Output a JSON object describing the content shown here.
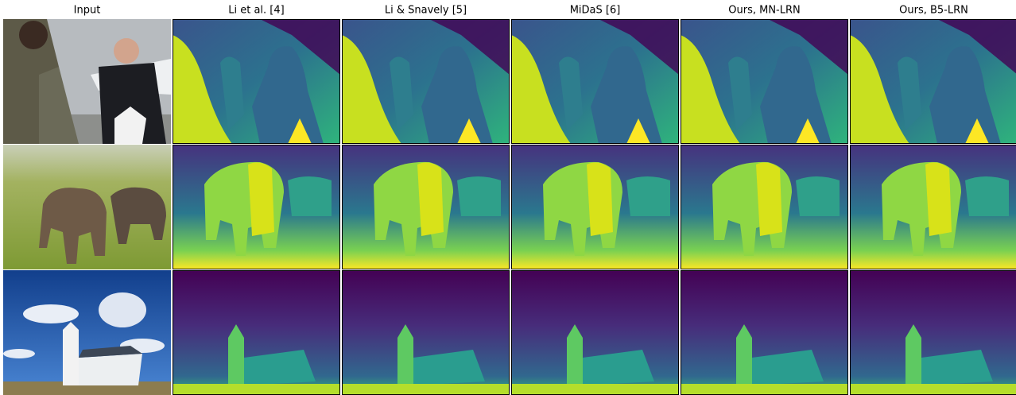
{
  "columns": [
    "Input",
    "Li et al. [4]",
    "Li & Snavely [5]",
    "MiDaS [6]",
    "Ours, MN-LRN",
    "Ours, B5-LRN"
  ]
}
